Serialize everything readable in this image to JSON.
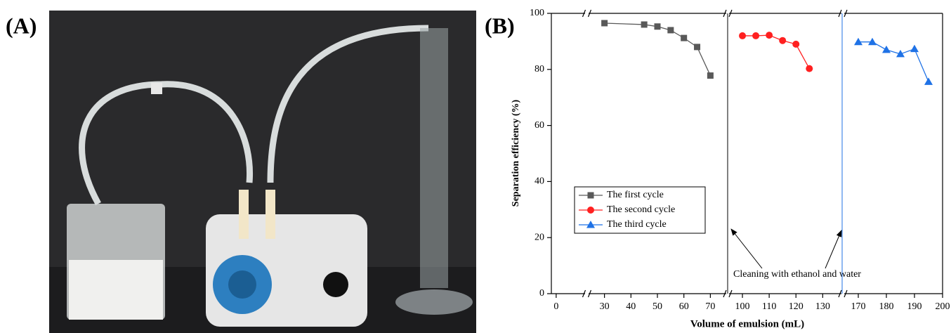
{
  "panel_a": {
    "label": "(A)"
  },
  "chart_data": {
    "type": "line",
    "panel_label": "(B)",
    "x_label": "Volume of emulsion (mL)",
    "y_label": "Separation efficiency (%)",
    "annotation": "Cleaning with ethanol and water",
    "x_segments": [
      {
        "xlim": [
          -2,
          12
        ],
        "xticks": [
          0
        ]
      },
      {
        "xlim": [
          24,
          76
        ],
        "xticks": [
          30,
          40,
          50,
          60,
          70
        ]
      },
      {
        "xlim": [
          95,
          137
        ],
        "xticks": [
          100,
          110,
          120,
          130
        ]
      },
      {
        "xlim": [
          165,
          200
        ],
        "xticks": [
          170,
          180,
          190,
          200
        ]
      }
    ],
    "ylim": [
      0,
      100
    ],
    "yticks": [
      0,
      20,
      40,
      60,
      80,
      100
    ],
    "legend": "lower-left",
    "series": [
      {
        "name": "The first cycle",
        "color": "#595959",
        "marker": "square",
        "x": [
          30,
          45,
          50,
          55,
          60,
          65,
          70
        ],
        "values": [
          96.5,
          96,
          95.3,
          94,
          91.2,
          88,
          77.8
        ]
      },
      {
        "name": "The second cycle",
        "color": "#ff2020",
        "marker": "circle",
        "x": [
          100,
          105,
          110,
          115,
          120,
          125
        ],
        "values": [
          92,
          92,
          92.2,
          90.3,
          89,
          80.3
        ]
      },
      {
        "name": "The third cycle",
        "color": "#1f72e6",
        "marker": "triangle",
        "x": [
          170,
          175,
          180,
          185,
          190,
          195
        ],
        "values": [
          89.8,
          89.8,
          87,
          85.5,
          87.3,
          75.6
        ]
      }
    ]
  }
}
